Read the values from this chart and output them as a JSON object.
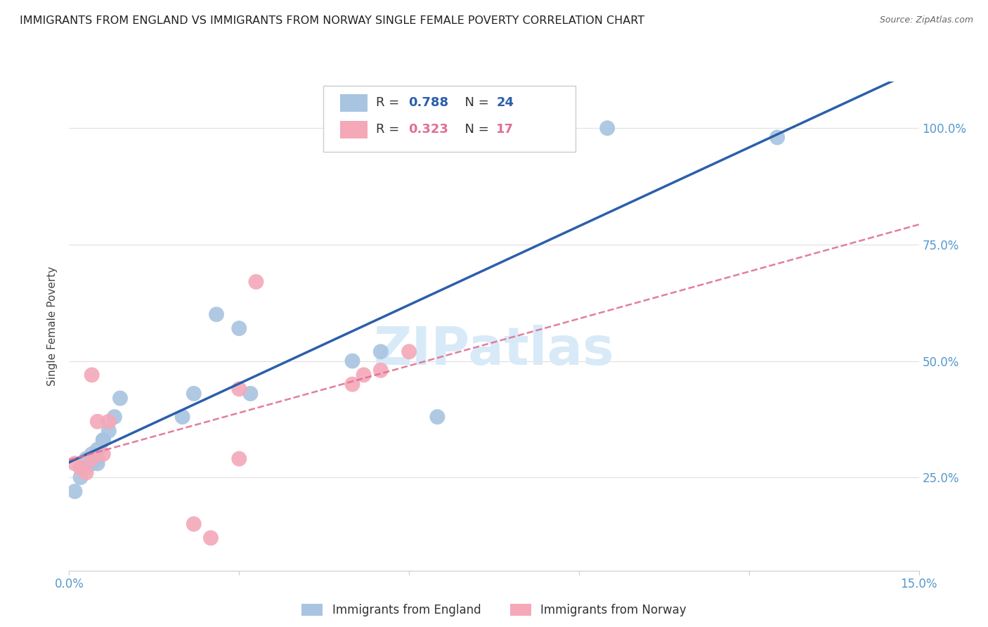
{
  "title": "IMMIGRANTS FROM ENGLAND VS IMMIGRANTS FROM NORWAY SINGLE FEMALE POVERTY CORRELATION CHART",
  "source": "Source: ZipAtlas.com",
  "ylabel": "Single Female Poverty",
  "england_R": 0.788,
  "england_N": 24,
  "norway_R": 0.323,
  "norway_N": 17,
  "england_color": "#a8c4e0",
  "norway_color": "#f4a8b8",
  "england_line_color": "#2b5faa",
  "norway_line_color": "#e07090",
  "watermark_color": "#d8eaf8",
  "background_color": "#ffffff",
  "grid_color": "#e0e0e0",
  "axis_label_color": "#5599cc",
  "title_color": "#222222",
  "title_fontsize": 11.5,
  "source_fontsize": 9,
  "england_x": [
    0.001,
    0.002,
    0.003,
    0.003,
    0.004,
    0.004,
    0.005,
    0.005,
    0.005,
    0.006,
    0.006,
    0.007,
    0.008,
    0.009,
    0.02,
    0.022,
    0.026,
    0.03,
    0.032,
    0.05,
    0.055,
    0.065,
    0.095,
    0.125
  ],
  "england_y": [
    0.22,
    0.25,
    0.27,
    0.29,
    0.28,
    0.3,
    0.28,
    0.29,
    0.31,
    0.33,
    0.33,
    0.35,
    0.38,
    0.42,
    0.38,
    0.43,
    0.6,
    0.57,
    0.43,
    0.5,
    0.52,
    0.38,
    1.0,
    0.98
  ],
  "norway_x": [
    0.001,
    0.002,
    0.003,
    0.004,
    0.004,
    0.005,
    0.006,
    0.007,
    0.022,
    0.025,
    0.03,
    0.03,
    0.033,
    0.05,
    0.052,
    0.055,
    0.06
  ],
  "norway_y": [
    0.28,
    0.27,
    0.26,
    0.29,
    0.47,
    0.37,
    0.3,
    0.37,
    0.15,
    0.12,
    0.29,
    0.44,
    0.67,
    0.45,
    0.47,
    0.48,
    0.52
  ],
  "xlim": [
    0.0,
    0.15
  ],
  "ylim": [
    0.05,
    1.1
  ],
  "yticks": [
    0.25,
    0.5,
    0.75,
    1.0
  ],
  "ytick_labels": [
    "25.0%",
    "50.0%",
    "75.0%",
    "100.0%"
  ],
  "xticks": [
    0.0,
    0.03,
    0.06,
    0.09,
    0.12,
    0.15
  ]
}
